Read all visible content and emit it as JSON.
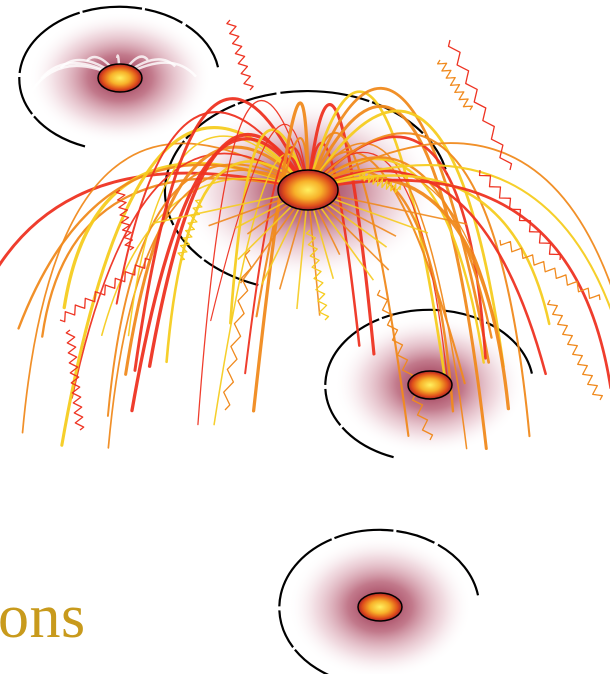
{
  "caption": {
    "text": "ons",
    "color": "#c89a1c"
  },
  "palette": {
    "glow": "#8c1d3c",
    "core_outer": "#e0501a",
    "core_inner": "#ffe040",
    "streak_red": "#ee3322",
    "streak_orange": "#f08a1e",
    "streak_yellow": "#f6cc20",
    "outline": "#000000"
  },
  "scene": {
    "bursts": [
      {
        "name": "main-burst"
      },
      {
        "name": "top-left-burst"
      },
      {
        "name": "right-burst"
      },
      {
        "name": "bottom-burst"
      }
    ]
  }
}
